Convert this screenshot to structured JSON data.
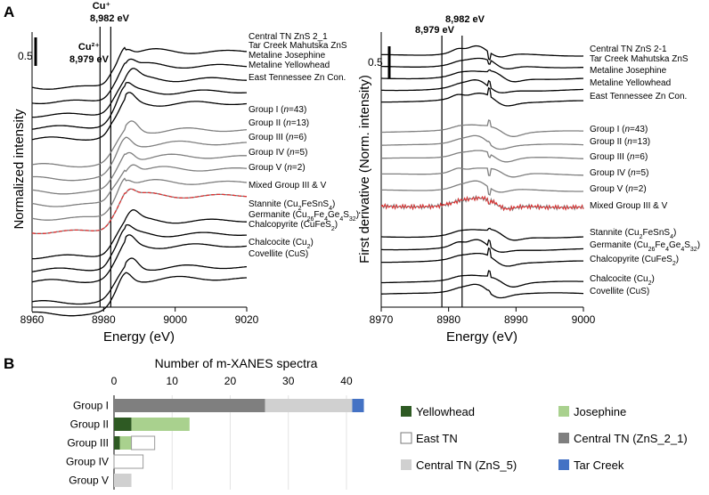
{
  "panel_labels": {
    "a": "A",
    "b": "B"
  },
  "annotations": {
    "cu_plus": "Cu⁺",
    "cu_plus_energy": "8,982 eV",
    "cu2_plus": "Cu²⁺",
    "cu2_plus_energy": "8,979 eV",
    "right_8979": "8,979 eV",
    "right_8982": "8,982 eV",
    "scale_left": "0.5",
    "scale_right": "0.5"
  },
  "chart_data": [
    {
      "type": "line",
      "title": "",
      "xlabel": "Energy (eV)",
      "ylabel": "Normalized intensity",
      "xlim": [
        8960,
        9020
      ],
      "xticks": [
        8960,
        8980,
        9000,
        9020
      ],
      "vlines": [
        8979,
        8982
      ],
      "series": [
        {
          "name": "Central TN ZnS 2_1",
          "color": "#000000"
        },
        {
          "name": "Tar Creek Mahutska ZnS",
          "color": "#000000"
        },
        {
          "name": "Metaline Josephine",
          "color": "#000000"
        },
        {
          "name": "Metaline Yellowhead",
          "color": "#000000"
        },
        {
          "name": "East Tennessee Zn Con.",
          "color": "#000000"
        },
        {
          "name": "Group I (n=43)",
          "color": "#7f7f7f"
        },
        {
          "name": "Group II (n=13)",
          "color": "#7f7f7f"
        },
        {
          "name": "Group III (n=6)",
          "color": "#7f7f7f"
        },
        {
          "name": "Group IV (n=5)",
          "color": "#7f7f7f"
        },
        {
          "name": "Group V (n=2)",
          "color": "#7f7f7f"
        },
        {
          "name": "Mixed Group III & V",
          "color": "#e03030"
        },
        {
          "name": "Stannite (Cu2FeSnS4)",
          "color": "#000000"
        },
        {
          "name": "Germanite (Cu26Fe4Ge4S32)",
          "color": "#000000"
        },
        {
          "name": "Chalcopyrite (CuFeS2)",
          "color": "#000000"
        },
        {
          "name": "Chalcocite (Cu2S)",
          "color": "#000000"
        },
        {
          "name": "Covellite (CuS)",
          "color": "#000000"
        }
      ]
    },
    {
      "type": "line",
      "title": "",
      "xlabel": "Energy (eV)",
      "ylabel": "First derivative (Norm. intensity)",
      "xlim": [
        8970,
        9000
      ],
      "xticks": [
        8970,
        8980,
        8990,
        9000
      ],
      "vlines": [
        8979,
        8982
      ],
      "series": [
        {
          "name": "Central TN ZnS 2-1",
          "color": "#000000"
        },
        {
          "name": "Tar Creek Mahutska ZnS",
          "color": "#000000"
        },
        {
          "name": "Metaline Josephine",
          "color": "#000000"
        },
        {
          "name": "Metaline Yellowhead",
          "color": "#000000"
        },
        {
          "name": "East Tennessee Zn Con.",
          "color": "#000000"
        },
        {
          "name": "Group I (n=43)",
          "color": "#7f7f7f"
        },
        {
          "name": "Group II (n=13)",
          "color": "#7f7f7f"
        },
        {
          "name": "Group III (n=6)",
          "color": "#7f7f7f"
        },
        {
          "name": "Group IV (n=5)",
          "color": "#7f7f7f"
        },
        {
          "name": "Group V (n=2)",
          "color": "#7f7f7f"
        },
        {
          "name": "Mixed Group III & V",
          "color": "#e03030"
        },
        {
          "name": "Stannite (Cu2FeSnS4)",
          "color": "#000000"
        },
        {
          "name": "Germanite (Cu26Fe4Ge4S32)",
          "color": "#000000"
        },
        {
          "name": "Chalcopyrite (CuFeS2)",
          "color": "#000000"
        },
        {
          "name": "Chalcocite (Cu2S)",
          "color": "#000000"
        },
        {
          "name": "Covellite (CuS)",
          "color": "#000000"
        }
      ]
    },
    {
      "type": "bar",
      "orientation": "horizontal",
      "stacked": true,
      "title": "Number of m-XANES spectra",
      "categories": [
        "Group I",
        "Group II",
        "Group III",
        "Group IV",
        "Group V"
      ],
      "xlim": [
        0,
        42
      ],
      "xticks": [
        0,
        10,
        20,
        30,
        40
      ],
      "series": [
        {
          "name": "Yellowhead",
          "color": "#2e5a23",
          "values": [
            0,
            3,
            1,
            0,
            0
          ]
        },
        {
          "name": "Josephine",
          "color": "#a9d18e",
          "values": [
            0,
            10,
            2,
            0,
            0
          ]
        },
        {
          "name": "East TN",
          "color": "#ffffff",
          "values": [
            0,
            0,
            4,
            5,
            0
          ]
        },
        {
          "name": "Central TN (ZnS_2_1)",
          "color": "#7f7f7f",
          "values": [
            26,
            0,
            0,
            0,
            0
          ]
        },
        {
          "name": "Central TN (ZnS_5)",
          "color": "#d0d0d0",
          "values": [
            15,
            0,
            0,
            0,
            3
          ]
        },
        {
          "name": "Tar Creek",
          "color": "#4472c4",
          "values": [
            2,
            0,
            0,
            0,
            0
          ]
        }
      ],
      "legend_order": [
        "Yellowhead",
        "Josephine",
        "East TN",
        "Central TN (ZnS_2_1)",
        "Central TN (ZnS_5)",
        "Tar Creek"
      ]
    }
  ]
}
